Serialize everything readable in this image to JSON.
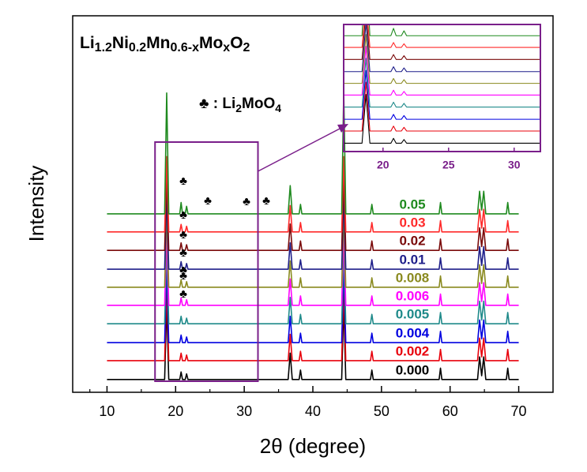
{
  "chart_data": {
    "type": "line",
    "title_parts": [
      "Li",
      "1.2",
      "Ni",
      "0.2",
      "Mn",
      "0.6-x",
      "Mo",
      "x",
      "O",
      "2"
    ],
    "legend_parts": [
      "♣ : Li",
      "2",
      "MoO",
      "4"
    ],
    "x_label": "2θ (degree)",
    "y_label": "Intensity",
    "xlim": [
      5,
      75
    ],
    "xticks": [
      10,
      20,
      30,
      40,
      50,
      60,
      70
    ],
    "ylim": [
      0,
      100
    ],
    "markers": [
      "♣",
      "♣",
      "♣",
      "♣",
      "♣",
      "♣",
      "♣",
      "♣",
      "♣",
      "♣"
    ],
    "x": [
      10,
      18.4,
      18.7,
      19.0,
      20.6,
      20.8,
      21.0,
      21.4,
      21.6,
      21.8,
      36.4,
      36.7,
      37.0,
      38.0,
      38.2,
      38.4,
      44.2,
      44.5,
      44.8,
      48.4,
      48.6,
      48.8,
      58.4,
      58.6,
      58.8,
      64.0,
      64.3,
      64.6,
      64.9,
      65.2,
      65.5,
      68.2,
      68.4,
      68.6,
      70
    ],
    "series": [
      {
        "name": "0.000",
        "color": "#000000",
        "values": [
          3.4,
          3.4,
          23.4,
          3.4,
          3.4,
          5.4,
          3.4,
          3.4,
          4.9,
          3.4,
          3.4,
          10.4,
          3.4,
          3.4,
          5.9,
          3.4,
          3.4,
          23.4,
          3.4,
          3.4,
          5.9,
          3.4,
          3.4,
          6.4,
          3.4,
          3.4,
          9.4,
          4.4,
          9.4,
          3.4,
          3.4,
          3.4,
          6.4,
          3.4,
          3.4
        ]
      },
      {
        "name": "0.002",
        "color": "#e8000b",
        "values": [
          8.4,
          8.4,
          28.4,
          8.4,
          8.4,
          10.4,
          8.4,
          8.4,
          9.9,
          8.4,
          8.4,
          15.4,
          8.4,
          8.4,
          10.9,
          8.4,
          8.4,
          28.4,
          8.4,
          8.4,
          10.9,
          8.4,
          8.4,
          11.4,
          8.4,
          8.4,
          14.4,
          9.4,
          14.4,
          8.4,
          8.4,
          8.4,
          11.4,
          8.4,
          8.4
        ]
      },
      {
        "name": "0.004",
        "color": "#0000e0",
        "values": [
          13.2,
          13.2,
          33.2,
          13.2,
          13.2,
          15.2,
          13.2,
          13.2,
          14.7,
          13.2,
          13.2,
          20.2,
          13.2,
          13.2,
          15.7,
          13.2,
          13.2,
          33.2,
          13.2,
          13.2,
          15.7,
          13.2,
          13.2,
          16.2,
          13.2,
          13.2,
          19.2,
          14.2,
          19.2,
          13.2,
          13.2,
          13.2,
          16.2,
          13.2,
          13.2
        ]
      },
      {
        "name": "0.005",
        "color": "#1f8a8a",
        "values": [
          18.2,
          18.2,
          38.2,
          18.2,
          18.2,
          20.2,
          18.2,
          18.2,
          19.7,
          18.2,
          18.2,
          25.2,
          18.2,
          18.2,
          20.7,
          18.2,
          18.2,
          38.2,
          18.2,
          18.2,
          20.7,
          18.2,
          18.2,
          21.2,
          18.2,
          18.2,
          24.2,
          19.2,
          24.2,
          18.2,
          18.2,
          18.2,
          21.2,
          18.2,
          18.2
        ]
      },
      {
        "name": "0.006",
        "color": "#ff00ff",
        "values": [
          23.1,
          23.1,
          43.1,
          23.1,
          23.1,
          25.1,
          23.1,
          23.1,
          24.6,
          23.1,
          23.1,
          30.1,
          23.1,
          23.1,
          25.6,
          23.1,
          23.1,
          43.1,
          23.1,
          23.1,
          25.6,
          23.1,
          23.1,
          26.1,
          23.1,
          23.1,
          29.1,
          24.1,
          29.1,
          23.1,
          23.1,
          23.1,
          26.1,
          23.1,
          23.1
        ]
      },
      {
        "name": "0.008",
        "color": "#8a8a1f",
        "values": [
          27.9,
          27.9,
          47.9,
          27.9,
          27.9,
          29.9,
          27.9,
          27.9,
          29.4,
          27.9,
          27.9,
          34.9,
          27.9,
          27.9,
          30.4,
          27.9,
          27.9,
          47.9,
          27.9,
          27.9,
          30.4,
          27.9,
          27.9,
          30.9,
          27.9,
          27.9,
          33.9,
          28.9,
          33.9,
          27.9,
          27.9,
          27.9,
          30.9,
          27.9,
          27.9
        ]
      },
      {
        "name": "0.01",
        "color": "#1f1f8a",
        "values": [
          32.7,
          32.7,
          52.7,
          32.7,
          32.7,
          34.7,
          32.7,
          32.7,
          34.2,
          32.7,
          32.7,
          39.7,
          32.7,
          32.7,
          35.2,
          32.7,
          32.7,
          52.7,
          32.7,
          32.7,
          35.2,
          32.7,
          32.7,
          35.7,
          32.7,
          32.7,
          38.7,
          33.7,
          38.7,
          32.7,
          32.7,
          32.7,
          35.7,
          32.7,
          32.7
        ]
      },
      {
        "name": "0.02",
        "color": "#7a0a0a",
        "values": [
          37.7,
          37.7,
          57.7,
          37.7,
          37.7,
          39.7,
          37.7,
          37.7,
          39.2,
          37.7,
          37.7,
          44.7,
          37.7,
          37.7,
          40.2,
          37.7,
          37.7,
          57.7,
          37.7,
          37.7,
          40.2,
          37.7,
          37.7,
          40.7,
          37.7,
          37.7,
          43.7,
          38.7,
          43.7,
          37.7,
          37.7,
          37.7,
          40.7,
          37.7,
          37.7
        ]
      },
      {
        "name": "0.03",
        "color": "#ff2a2a",
        "values": [
          42.6,
          42.6,
          62.6,
          42.6,
          42.6,
          44.6,
          42.6,
          42.6,
          44.1,
          42.6,
          42.6,
          49.6,
          42.6,
          42.6,
          45.1,
          42.6,
          42.6,
          62.6,
          42.6,
          42.6,
          45.1,
          42.6,
          42.6,
          45.6,
          42.6,
          42.6,
          48.6,
          43.6,
          48.6,
          42.6,
          42.6,
          42.6,
          45.6,
          42.6,
          42.6
        ]
      },
      {
        "name": "0.05",
        "color": "#1f8a1f",
        "values": [
          47.4,
          47.4,
          79.5,
          47.4,
          47.4,
          50.4,
          47.4,
          47.4,
          49.4,
          47.4,
          47.4,
          54.9,
          47.4,
          47.4,
          49.9,
          47.4,
          47.4,
          80,
          47.4,
          47.4,
          49.9,
          47.4,
          47.4,
          50.4,
          47.4,
          47.4,
          53.4,
          48.4,
          53.4,
          47.4,
          47.4,
          47.4,
          50.4,
          47.4,
          47.4
        ]
      }
    ],
    "inset": {
      "xlim": [
        17,
        32
      ],
      "ylim": [
        0,
        52
      ],
      "xticks": [
        20,
        25,
        30
      ],
      "color": "#7a1f8a"
    }
  }
}
